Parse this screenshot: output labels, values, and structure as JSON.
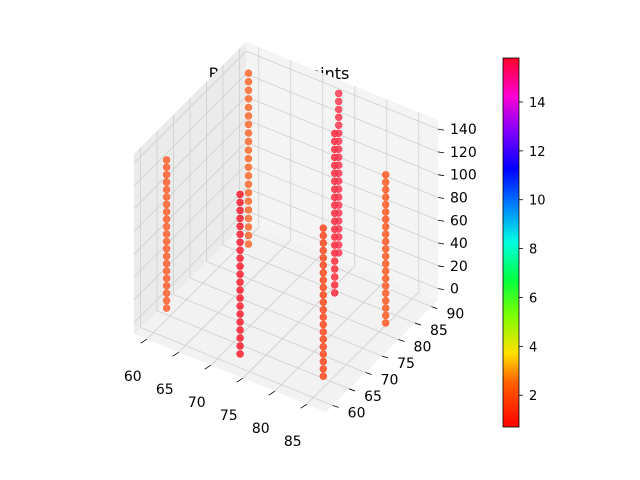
{
  "chart_data": {
    "type": "scatter",
    "projection": "3d",
    "title": "Real space points",
    "xlabel": "",
    "ylabel": "",
    "zlabel": "",
    "xlim": [
      58,
      88
    ],
    "ylim": [
      58,
      92
    ],
    "zlim": [
      -10,
      148
    ],
    "xticks": [
      60,
      65,
      70,
      75,
      80,
      85
    ],
    "yticks": [
      60,
      65,
      70,
      75,
      80,
      85,
      90
    ],
    "zticks": [
      0,
      20,
      40,
      60,
      80,
      100,
      120,
      140
    ],
    "grid": true,
    "colormap": "hsv",
    "colorbar": {
      "range": [
        0.7,
        15.8
      ],
      "ticks": [
        2,
        4,
        6,
        8,
        10,
        12,
        14
      ],
      "placement": "right"
    },
    "series": [
      {
        "x": 60,
        "y": 64,
        "z_start": 0,
        "z_end": 130,
        "z_step": 6.5,
        "color_value": 1.6,
        "color": "#ff6030"
      },
      {
        "x": 62,
        "y": 85,
        "z_start": 0,
        "z_end": 150,
        "z_step": 7.5,
        "color_value": 1.5,
        "color": "#ff6a30"
      },
      {
        "x": 72,
        "y": 63,
        "z_start": -10,
        "z_end": 130,
        "z_step": 7,
        "color_value": 0.8,
        "color": "#ff1f2e"
      },
      {
        "x": 77,
        "y": 82,
        "z_start": 0,
        "z_end": 140,
        "z_step": 7,
        "color_value": 0.9,
        "color": "#ff2d3c"
      },
      {
        "x": 73,
        "y": 91,
        "z_start": 0,
        "z_end": 140,
        "z_step": 7,
        "color_value": 0.9,
        "color": "#ff3850"
      },
      {
        "x": 85,
        "y": 63,
        "z_start": 0,
        "z_end": 130,
        "z_step": 6.5,
        "color_value": 1.4,
        "color": "#ff4a1e"
      },
      {
        "x": 86,
        "y": 80,
        "z_start": 0,
        "z_end": 130,
        "z_step": 6.5,
        "color_value": 1.5,
        "color": "#ff5a26"
      }
    ]
  }
}
